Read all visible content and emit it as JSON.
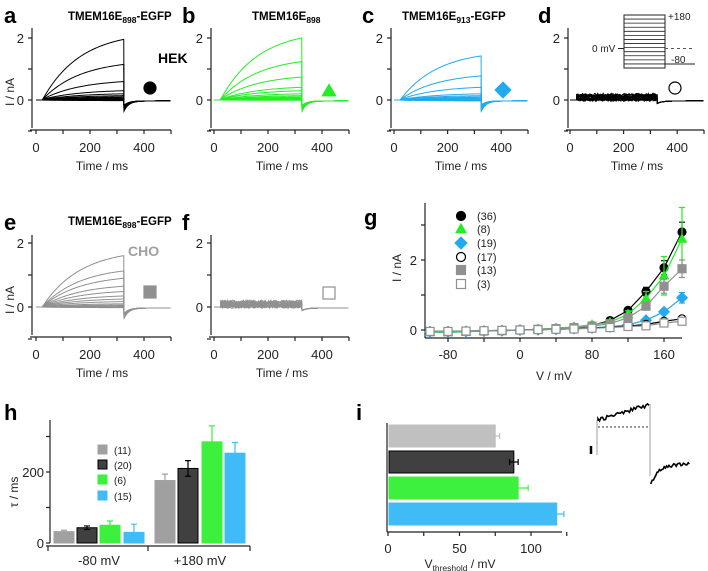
{
  "panels": {
    "a": {
      "letter": "a",
      "title_base": "TMEM16E",
      "title_sub": "898",
      "title_suffix": "-EGFP",
      "cell_label": "HEK",
      "color": "#000000",
      "marker": "filled-circle",
      "steady_currents_nA": [
        2.1,
        1.22,
        0.62,
        0.3,
        0.2,
        0.14,
        0.1,
        0.07,
        0.05,
        0.03,
        0.02,
        0.01,
        0,
        -0.01,
        -0.02
      ]
    },
    "b": {
      "letter": "b",
      "title_base": "TMEM16E",
      "title_sub": "898",
      "title_suffix": "",
      "color": "#22ee22",
      "marker": "triangle",
      "steady_currents_nA": [
        2.15,
        1.32,
        0.78,
        0.42,
        0.3,
        0.2,
        0.14,
        0.1,
        0.07,
        0.05,
        0.03,
        0.02,
        0.01,
        0,
        -0.01
      ]
    },
    "c": {
      "letter": "c",
      "title_base": "TMEM16E",
      "title_sub": "913",
      "title_suffix": "-EGFP",
      "color": "#22aaee",
      "marker": "diamond",
      "steady_currents_nA": [
        1.52,
        0.82,
        0.42,
        0.2,
        0.14,
        0.1,
        0.07,
        0.05,
        0.03,
        0.02,
        0.01,
        0,
        -0.01,
        -0.02,
        -0.03
      ]
    },
    "d": {
      "letter": "d",
      "color": "#000000",
      "marker": "open-circle",
      "steady_currents_nA": [
        0.22,
        0.2,
        0.18,
        0.16,
        0.14,
        0.12,
        0.1,
        0.08,
        0.06,
        0.05,
        0.04,
        0.03,
        0.02,
        0.01,
        0
      ],
      "protocol": {
        "top_label": "+180",
        "hold_label": "0 mV",
        "bottom_label": "-80"
      }
    },
    "e": {
      "letter": "e",
      "title_base": "TMEM16E",
      "title_sub": "898",
      "title_suffix": "-EGFP",
      "cell_label": "CHO",
      "color": "#909090",
      "marker": "filled-square",
      "steady_currents_nA": [
        1.72,
        1.2,
        0.95,
        0.68,
        0.5,
        0.35,
        0.25,
        0.17,
        0.1,
        0.06,
        0.03,
        0.01,
        0,
        -0.01,
        -0.02
      ]
    },
    "f": {
      "letter": "f",
      "color": "#909090",
      "marker": "open-square",
      "steady_currents_nA": [
        0.22,
        0.2,
        0.18,
        0.16,
        0.14,
        0.12,
        0.1,
        0.08,
        0.06,
        0.05,
        0.04,
        0.03,
        0.02,
        0.01,
        0
      ]
    }
  },
  "trace_axes": {
    "ylabel": "I / nA",
    "xlabel": "Time / ms",
    "xticks": [
      "0",
      "200",
      "400"
    ],
    "yticks": [
      "2",
      "0"
    ]
  },
  "chart_data": [
    {
      "id": "g",
      "letter": "g",
      "type": "line",
      "xlabel": "V / mV",
      "ylabel": "I / nA",
      "xticks": [
        "-80",
        "0",
        "80",
        "160"
      ],
      "yticks": [
        "2",
        "0"
      ],
      "xlim": [
        -105,
        180
      ],
      "ylim": [
        -0.25,
        3.6
      ],
      "x": [
        -100,
        -80,
        -60,
        -40,
        -20,
        0,
        20,
        40,
        60,
        80,
        100,
        120,
        140,
        160,
        180
      ],
      "series": [
        {
          "name": "(36)",
          "color": "#000000",
          "marker": "filled-circle",
          "values": [
            -0.05,
            -0.05,
            -0.04,
            -0.03,
            -0.02,
            0,
            0.02,
            0.05,
            0.08,
            0.13,
            0.27,
            0.56,
            1.1,
            1.78,
            2.8
          ],
          "err": [
            0,
            0,
            0,
            0,
            0,
            0,
            0,
            0,
            0,
            0,
            0.03,
            0.06,
            0.12,
            0.2,
            0.28
          ]
        },
        {
          "name": "(8)",
          "color": "#22ee22",
          "marker": "triangle",
          "values": [
            -0.06,
            -0.07,
            -0.05,
            -0.03,
            -0.02,
            0,
            0.02,
            0.05,
            0.09,
            0.15,
            0.22,
            0.45,
            0.9,
            1.55,
            2.6
          ],
          "err": [
            0,
            0,
            0,
            0,
            0,
            0,
            0,
            0,
            0,
            0,
            0.05,
            0.1,
            0.2,
            0.55,
            0.9
          ]
        },
        {
          "name": "(19)",
          "color": "#22aaee",
          "marker": "diamond",
          "values": [
            -0.05,
            -0.05,
            -0.04,
            -0.03,
            -0.02,
            0,
            0.01,
            0.02,
            0.04,
            0.06,
            0.09,
            0.15,
            0.28,
            0.52,
            0.92
          ],
          "err": [
            0,
            0,
            0,
            0,
            0,
            0,
            0,
            0,
            0,
            0,
            0.02,
            0.03,
            0.05,
            0.08,
            0.15
          ]
        },
        {
          "name": "(17)",
          "color": "#000000",
          "marker": "open-circle",
          "values": [
            -0.04,
            -0.04,
            -0.03,
            -0.02,
            -0.01,
            0,
            0.01,
            0.02,
            0.04,
            0.06,
            0.08,
            0.11,
            0.16,
            0.25,
            0.32
          ],
          "err": [
            0,
            0,
            0,
            0,
            0,
            0,
            0,
            0,
            0,
            0,
            0,
            0,
            0.02,
            0.03,
            0.04
          ]
        },
        {
          "name": "(13)",
          "color": "#909090",
          "marker": "filled-square",
          "values": [
            -0.05,
            -0.05,
            -0.04,
            -0.03,
            -0.02,
            0,
            0.02,
            0.04,
            0.07,
            0.11,
            0.18,
            0.35,
            0.68,
            1.25,
            1.75
          ],
          "err": [
            0,
            0,
            0,
            0,
            0,
            0,
            0,
            0,
            0,
            0,
            0.03,
            0.05,
            0.1,
            0.2,
            0.25
          ]
        },
        {
          "name": "(3)",
          "color": "#909090",
          "marker": "open-square",
          "values": [
            -0.04,
            -0.04,
            -0.03,
            -0.02,
            -0.01,
            0,
            0.01,
            0.02,
            0.03,
            0.05,
            0.07,
            0.1,
            0.12,
            0.2,
            0.25
          ],
          "err": [
            0,
            0,
            0,
            0,
            0,
            0,
            0,
            0,
            0,
            0,
            0,
            0,
            0.02,
            0.02,
            0.03
          ]
        }
      ]
    },
    {
      "id": "h",
      "letter": "h",
      "type": "bar",
      "ylabel": "τ / ms",
      "yticks": [
        "200",
        "0"
      ],
      "ylim": [
        0,
        340
      ],
      "categories": [
        "-80 mV",
        "+180 mV"
      ],
      "series": [
        {
          "name": "(11)",
          "color": "#a0a0a0",
          "values": [
            32,
            176
          ],
          "err": [
            4,
            18
          ]
        },
        {
          "name": "(20)",
          "color": "#404040",
          "values": [
            43,
            210
          ],
          "err": [
            5,
            22
          ]
        },
        {
          "name": "(6)",
          "color": "#3df03d",
          "values": [
            50,
            285
          ],
          "err": [
            12,
            45
          ]
        },
        {
          "name": "(15)",
          "color": "#3fbcf5",
          "values": [
            30,
            253
          ],
          "err": [
            23,
            30
          ]
        }
      ]
    },
    {
      "id": "i",
      "letter": "i",
      "type": "bar",
      "orientation": "horizontal",
      "xlabel_base": "V",
      "xlabel_sub": "threshold",
      "xlabel_suffix": " / mV",
      "xticks": [
        "0",
        "50",
        "100"
      ],
      "xlim": [
        0,
        130
      ],
      "values": [
        75,
        88,
        91,
        118
      ],
      "err": [
        3,
        3,
        7,
        5
      ],
      "colors": [
        "#c0c0c0",
        "#404040",
        "#3df03d",
        "#3fbcf5"
      ]
    }
  ]
}
